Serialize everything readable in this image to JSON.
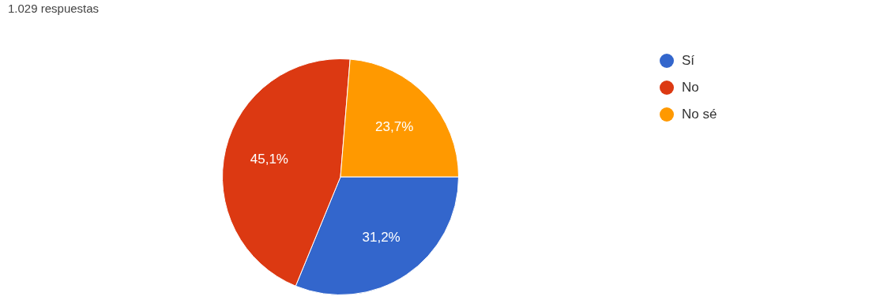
{
  "chart_data": {
    "type": "pie",
    "subtitle": "1.029 respuestas",
    "categories": [
      "Sí",
      "No",
      "No sé"
    ],
    "values": [
      31.2,
      45.1,
      23.7
    ],
    "colors": [
      "#3366cc",
      "#dc3912",
      "#ff9900"
    ],
    "value_labels": [
      "31,2%",
      "45,1%",
      "23,7%"
    ],
    "legend": "top right"
  }
}
